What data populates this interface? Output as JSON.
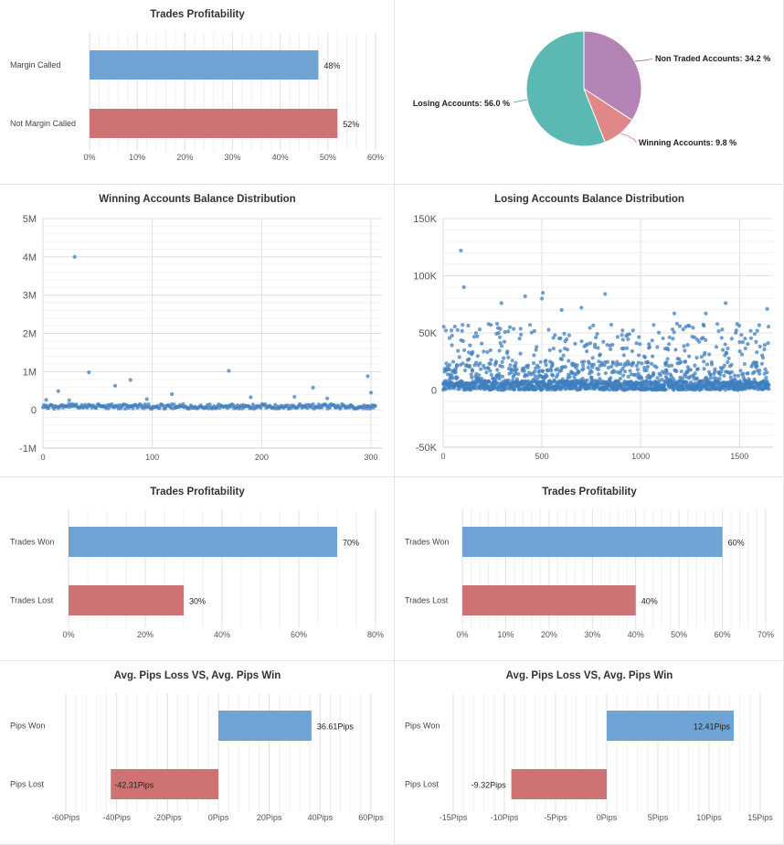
{
  "colors": {
    "blue": "#6fa3d4",
    "red": "#ce7373",
    "teal": "#5cb8b2",
    "purple": "#b484b6",
    "pink": "#e08888",
    "dot": "#3f7fbf",
    "grid": "#ebebeb"
  },
  "chart_data": [
    {
      "id": "trades-profitability-margin",
      "type": "bar",
      "orientation": "horizontal",
      "title": "Trades Profitability",
      "categories": [
        "Margin Called",
        "Not Margin Called"
      ],
      "values": [
        48,
        52
      ],
      "value_labels": [
        "48%",
        "52%"
      ],
      "bar_colors": [
        "blue",
        "red"
      ],
      "xlim": [
        0,
        60
      ],
      "xticks": [
        0,
        10,
        20,
        30,
        40,
        50,
        60
      ],
      "xtick_labels": [
        "0%",
        "10%",
        "20%",
        "30%",
        "40%",
        "50%",
        "60%"
      ],
      "label_inside": false
    },
    {
      "id": "accounts-pie",
      "type": "pie",
      "title": "",
      "slices": [
        {
          "label": "Non Traded Accounts: 34.2 %",
          "value": 34.2,
          "color": "purple"
        },
        {
          "label": "Winning Accounts: 9.8 %",
          "value": 9.8,
          "color": "pink"
        },
        {
          "label": "Losing Accounts: 56.0 %",
          "value": 56.0,
          "color": "teal"
        }
      ]
    },
    {
      "id": "winning-balance-distribution",
      "type": "scatter",
      "title": "Winning Accounts Balance Distribution",
      "xlim": [
        0,
        310
      ],
      "ylim": [
        -1000000,
        5000000
      ],
      "xticks": [
        0,
        100,
        200,
        300
      ],
      "xtick_labels": [
        "0",
        "100",
        "200",
        "300"
      ],
      "yticks": [
        -1000000,
        0,
        1000000,
        2000000,
        3000000,
        4000000,
        5000000
      ],
      "ytick_labels": [
        "-1M",
        "0",
        "1M",
        "2M",
        "3M",
        "4M",
        "5M"
      ],
      "outliers": [
        [
          29,
          4000000
        ],
        [
          42,
          980000
        ],
        [
          80,
          780000
        ],
        [
          66,
          630000
        ],
        [
          14,
          490000
        ],
        [
          170,
          1020000
        ],
        [
          247,
          580000
        ],
        [
          297,
          880000
        ],
        [
          118,
          410000
        ],
        [
          230,
          340000
        ],
        [
          260,
          300000
        ],
        [
          190,
          330000
        ],
        [
          300,
          450000
        ],
        [
          3,
          260000
        ],
        [
          24,
          250000
        ],
        [
          95,
          280000
        ]
      ],
      "base_count": 300,
      "base_range": [
        30000,
        150000
      ]
    },
    {
      "id": "losing-balance-distribution",
      "type": "scatter",
      "title": "Losing Accounts Balance Distribution",
      "xlim": [
        0,
        1670
      ],
      "ylim": [
        -50000,
        150000
      ],
      "xticks": [
        0,
        500,
        1000,
        1500
      ],
      "xtick_labels": [
        "0",
        "500",
        "1000",
        "1500"
      ],
      "yticks": [
        -50000,
        0,
        50000,
        100000,
        150000
      ],
      "ytick_labels": [
        "-50K",
        "0",
        "50K",
        "100K",
        "150K"
      ],
      "outliers": [
        [
          90,
          122000
        ],
        [
          105,
          90000
        ],
        [
          295,
          76000
        ],
        [
          415,
          82000
        ],
        [
          505,
          85000
        ],
        [
          500,
          80000
        ],
        [
          820,
          84000
        ],
        [
          1430,
          76000
        ],
        [
          1640,
          71000
        ],
        [
          600,
          70000
        ],
        [
          700,
          72000
        ],
        [
          1170,
          67000
        ],
        [
          1330,
          67000
        ]
      ],
      "base_count": 1650,
      "dense_range": [
        0,
        8000
      ],
      "spread_range": [
        0,
        58000
      ]
    },
    {
      "id": "trades-won-lost-1",
      "type": "bar",
      "orientation": "horizontal",
      "title": "Trades Profitability",
      "categories": [
        "Trades Won",
        "Trades Lost"
      ],
      "values": [
        70,
        30
      ],
      "value_labels": [
        "70%",
        "30%"
      ],
      "bar_colors": [
        "blue",
        "red"
      ],
      "xlim": [
        0,
        80
      ],
      "xticks": [
        0,
        20,
        40,
        60,
        80
      ],
      "xtick_labels": [
        "0%",
        "20%",
        "40%",
        "60%",
        "80%"
      ],
      "label_inside": false
    },
    {
      "id": "trades-won-lost-2",
      "type": "bar",
      "orientation": "horizontal",
      "title": "Trades Profitability",
      "categories": [
        "Trades Won",
        "Trades Lost"
      ],
      "values": [
        60,
        40
      ],
      "value_labels": [
        "60%",
        "40%"
      ],
      "bar_colors": [
        "blue",
        "red"
      ],
      "xlim": [
        0,
        70
      ],
      "xticks": [
        0,
        10,
        20,
        30,
        40,
        50,
        60,
        70
      ],
      "xtick_labels": [
        "0%",
        "10%",
        "20%",
        "30%",
        "40%",
        "50%",
        "60%",
        "70%"
      ],
      "label_inside": false
    },
    {
      "id": "pips-1",
      "type": "bar",
      "orientation": "horizontal",
      "title": "Avg. Pips Loss VS, Avg. Pips Win",
      "categories": [
        "Pips Won",
        "Pips Lost"
      ],
      "values": [
        36.61,
        -42.31
      ],
      "value_labels": [
        "36.61Pips",
        "-42.31Pips"
      ],
      "bar_colors": [
        "blue",
        "red"
      ],
      "xlim": [
        -60,
        60
      ],
      "xticks": [
        -60,
        -40,
        -20,
        0,
        20,
        40,
        60
      ],
      "xtick_labels": [
        "-60Pips",
        "-40Pips",
        "-20Pips",
        "0Pips",
        "20Pips",
        "40Pips",
        "60Pips"
      ],
      "label_inside": [
        false,
        true
      ]
    },
    {
      "id": "pips-2",
      "type": "bar",
      "orientation": "horizontal",
      "title": "Avg. Pips Loss VS, Avg. Pips Win",
      "categories": [
        "Pips Won",
        "Pips Lost"
      ],
      "values": [
        12.41,
        -9.32
      ],
      "value_labels": [
        "12.41Pips",
        "-9.32Pips"
      ],
      "bar_colors": [
        "blue",
        "red"
      ],
      "xlim": [
        -15,
        15
      ],
      "xticks": [
        -15,
        -10,
        -5,
        0,
        5,
        10,
        15
      ],
      "xtick_labels": [
        "-15Pips",
        "-10Pips",
        "-5Pips",
        "0Pips",
        "5Pips",
        "10Pips",
        "15Pips"
      ],
      "label_inside": [
        true,
        false
      ]
    }
  ]
}
